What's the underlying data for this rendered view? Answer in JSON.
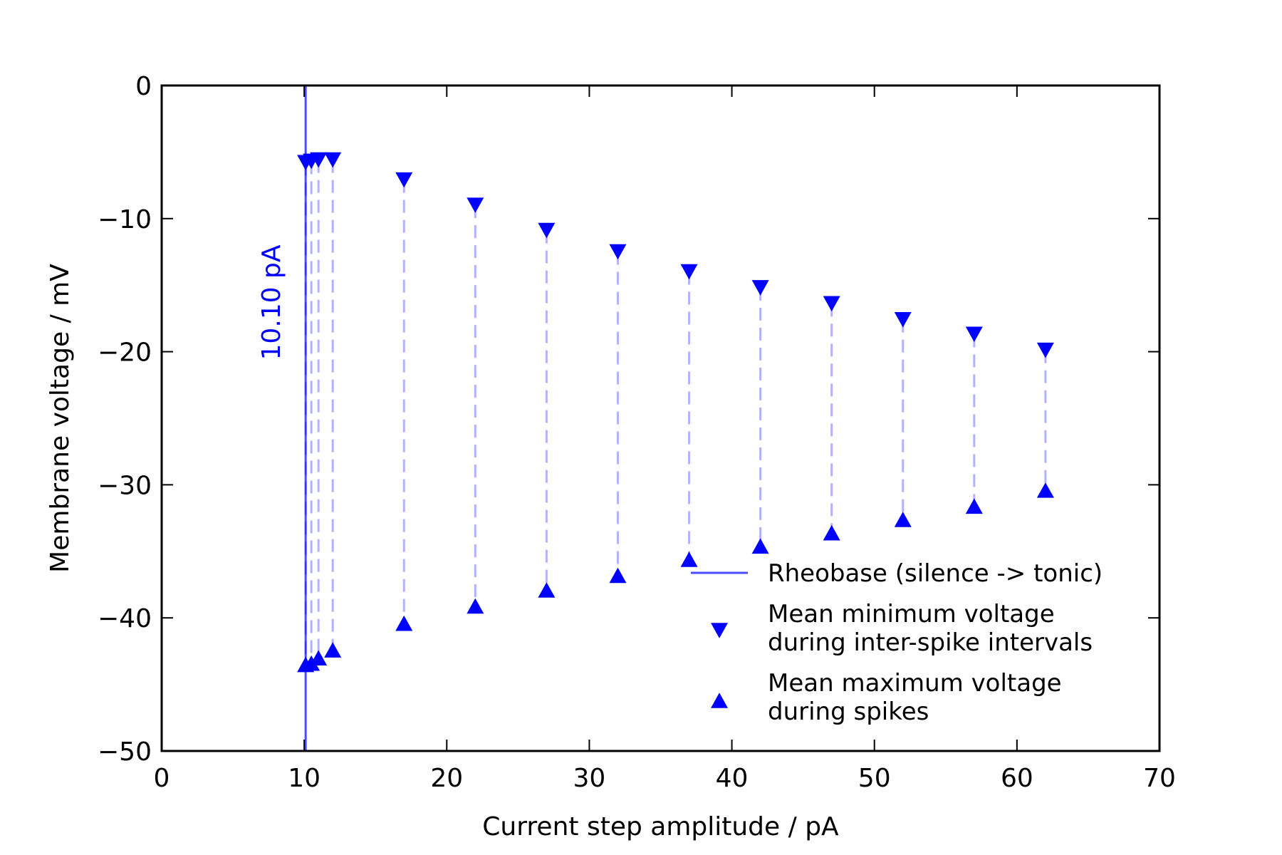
{
  "chart_data": {
    "type": "scatter",
    "xlabel": "Current step amplitude / pA",
    "ylabel": "Membrane voltage / mV",
    "xlim": [
      0,
      70
    ],
    "ylim": [
      -50,
      0
    ],
    "xticks": [
      0,
      10,
      20,
      30,
      40,
      50,
      60,
      70
    ],
    "yticks": [
      0,
      -10,
      -20,
      -30,
      -40,
      -50
    ],
    "xtick_labels": [
      "0",
      "10",
      "20",
      "30",
      "40",
      "50",
      "60",
      "70"
    ],
    "ytick_labels": [
      "0",
      "−10",
      "−20",
      "−30",
      "−40",
      "−50"
    ],
    "grid": false,
    "legend_position": "bottom-right",
    "color": "#0000ff",
    "rheobase": {
      "x": 10.1,
      "label": "10.10 pA",
      "legend": "Rheobase (silence -> tonic)"
    },
    "series": [
      {
        "name": "Mean minimum voltage during inter-spike intervals",
        "legend_lines": [
          "Mean minimum voltage",
          "during inter-spike intervals"
        ],
        "marker": "triangle-down",
        "x": [
          10.1,
          10.5,
          11,
          12,
          17,
          22,
          27,
          32,
          37,
          42,
          47,
          52,
          57,
          62
        ],
        "y": [
          -5.8,
          -5.7,
          -5.6,
          -5.6,
          -7.1,
          -9.0,
          -10.9,
          -12.5,
          -14.0,
          -15.2,
          -16.4,
          -17.6,
          -18.7,
          -19.9
        ]
      },
      {
        "name": "Mean maximum voltage during spikes",
        "legend_lines": [
          "Mean maximum voltage",
          "during spikes"
        ],
        "marker": "triangle-up",
        "x": [
          10.1,
          10.5,
          11,
          12,
          17,
          22,
          27,
          32,
          37,
          42,
          47,
          52,
          57,
          62
        ],
        "y": [
          -43.5,
          -43.4,
          -43.0,
          -42.4,
          -40.4,
          -39.1,
          -37.9,
          -36.8,
          -35.6,
          -34.6,
          -33.6,
          -32.6,
          -31.6,
          -30.4
        ]
      }
    ]
  }
}
